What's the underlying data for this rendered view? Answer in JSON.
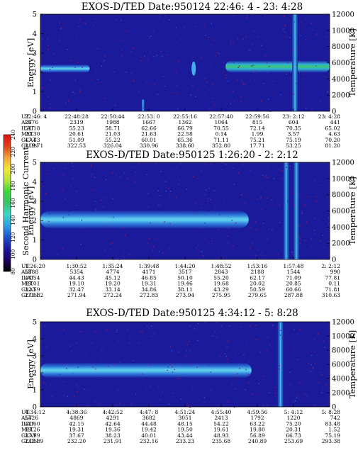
{
  "colors": {
    "background": "#1a1a9a",
    "colorbar_stops": [
      "#000000",
      "#200060",
      "#1a1aa0",
      "#1f4fd0",
      "#2aa0e6",
      "#3ad6c8",
      "#39c46a",
      "#38d838",
      "#b6e63a",
      "#f2e63a",
      "#f2a23a",
      "#e0401a",
      "#e01010"
    ]
  },
  "colorbar": {
    "label": "Second Harmonic Current",
    "ticks": [
      "80",
      "100",
      "120",
      "140",
      "160",
      "180",
      "200",
      "220",
      "240"
    ]
  },
  "ephemeris_labels": [
    "UT",
    "ALT",
    "ILAT",
    "MLT",
    "GLAT",
    "GLON"
  ],
  "chart_data": [
    {
      "type": "heatmap",
      "title": "EXOS-D/TED   Date:950124  22:46: 4 - 23: 4:28",
      "ylabel": "Energy [eV]",
      "ylabel_right": "Temperature [K]",
      "ylim": [
        0,
        5
      ],
      "yticks": [
        "0",
        "1",
        "2",
        "3",
        "4",
        "5"
      ],
      "ylim_right": [
        0,
        12000
      ],
      "yticks_right": [
        "0",
        "2000",
        "4000",
        "6000",
        "8000",
        "10000",
        "12000"
      ],
      "ephemeris": {
        "UT": [
          "22:46: 4",
          "22:48:28",
          "22:50:44",
          "22:53: 0",
          "22:55:16",
          "22:57:40",
          "22:59:56",
          "23: 2:12",
          "23: 4:28"
        ],
        "ALT": [
          "2676",
          "2319",
          "1988",
          "1667",
          "1362",
          "1064",
          "815",
          "604",
          "441"
        ],
        "ILAT": [
          "52.18",
          "55.23",
          "58.71",
          "62.66",
          "66.79",
          "70.55",
          "72.14",
          "70.35",
          "65.02"
        ],
        "MLT": [
          "20.30",
          "20.61",
          "21.03",
          "21.63",
          "22.58",
          "0.14",
          "1.99",
          "3.57",
          "4.63"
        ],
        "GLAT": [
          "47.43",
          "51.09",
          "55.22",
          "60.01",
          "65.36",
          "71.11",
          "75.21",
          "75.19",
          "70.20"
        ],
        "GLON": [
          "319.71",
          "322.53",
          "326.04",
          "330.96",
          "338.60",
          "352.80",
          "17.71",
          "53.25",
          "81.20"
        ]
      },
      "features": [
        {
          "name": "band",
          "x_start": 0.0,
          "x_end": 0.17,
          "energy_center": 2.2,
          "energy_width": 0.4,
          "level": 150
        },
        {
          "name": "spike",
          "x": 0.355,
          "energy_center": 0.2,
          "level": 130
        },
        {
          "name": "blob",
          "x": 0.53,
          "energy_center": 2.2,
          "level": 140
        },
        {
          "name": "patch",
          "x_start": 0.64,
          "x_end": 1.0,
          "energy_center": 2.3,
          "energy_width": 0.6,
          "level": 200
        },
        {
          "name": "vertical",
          "x": 0.88,
          "level": 170
        }
      ]
    },
    {
      "type": "heatmap",
      "title": "EXOS-D/TED   Date:950125   1:26:20 - 2: 2:12",
      "ylabel": "Energy [eV]",
      "ylabel_right": "Temperature [K]",
      "ylim": [
        0,
        5
      ],
      "yticks": [
        "0",
        "1",
        "2",
        "3",
        "4",
        "5"
      ],
      "ylim_right": [
        0,
        12000
      ],
      "yticks_right": [
        "0",
        "2000",
        "4000",
        "6000",
        "8000",
        "10000",
        "12000"
      ],
      "ephemeris": {
        "UT": [
          "1:26:20",
          "1:30:52",
          "1:35:24",
          "1:39:48",
          "1:44:20",
          "1:48:52",
          "1:53:16",
          "1:57:48",
          "2: 2:12"
        ],
        "ALT": [
          "5888",
          "5354",
          "4774",
          "4171",
          "3517",
          "2843",
          "2188",
          "1544",
          "990"
        ],
        "ILAT": [
          "44.54",
          "44.43",
          "45.12",
          "46.85",
          "50.10",
          "55.20",
          "62.17",
          "71.09",
          "77.81"
        ],
        "MLT": [
          "19.01",
          "19.10",
          "19.20",
          "19.31",
          "19.46",
          "19.68",
          "20.02",
          "20.85",
          "0.11"
        ],
        "GLAT": [
          "32.59",
          "32.47",
          "33.14",
          "34.86",
          "38.11",
          "43.29",
          "50.59",
          "60.66",
          "71.81"
        ],
        "GLON": [
          "271.82",
          "271.94",
          "272.24",
          "272.83",
          "273.94",
          "275.95",
          "279.65",
          "287.88",
          "310.63"
        ]
      },
      "features": [
        {
          "name": "band",
          "x_start": 0.0,
          "x_end": 0.72,
          "energy_center": 2.05,
          "energy_width": 0.9,
          "level": 150
        },
        {
          "name": "vertical",
          "x": 0.85,
          "level": 120
        },
        {
          "name": "vertical",
          "x": 0.885,
          "level": 120
        }
      ]
    },
    {
      "type": "heatmap",
      "title": "EXOS-D/TED   Date:950125   4:34:12 - 5: 8:28",
      "ylabel": "Energy [eV]",
      "ylabel_right": "Temperature [K]",
      "ylim": [
        0,
        5
      ],
      "yticks": [
        "0",
        "1",
        "2",
        "3",
        "4",
        "5"
      ],
      "ylim_right": [
        0,
        12000
      ],
      "yticks_right": [
        "0",
        "2000",
        "4000",
        "6000",
        "8000",
        "10000",
        "12000"
      ],
      "ephemeris": {
        "UT": [
          "4:34:12",
          "4:38:36",
          "4:42:52",
          "4:47: 8",
          "4:51:24",
          "4:55:40",
          "4:59:56",
          "5: 4:12",
          "5: 8:28"
        ],
        "ALT": [
          "5426",
          "4869",
          "4291",
          "3682",
          "3051",
          "2413",
          "1792",
          "1220",
          "742"
        ],
        "ILAT": [
          "42.60",
          "42.15",
          "42.64",
          "44.48",
          "48.15",
          "54.22",
          "63.22",
          "75.20",
          "83.48"
        ],
        "MLT": [
          "19.26",
          "19.31",
          "19.36",
          "19.42",
          "19.50",
          "19.61",
          "19.80",
          "20.31",
          "1.52"
        ],
        "GLAT": [
          "37.99",
          "37.67",
          "38.23",
          "40.01",
          "43.44",
          "48.93",
          "56.89",
          "66.73",
          "75.19"
        ],
        "GLON": [
          "232.89",
          "232.20",
          "231.91",
          "232.16",
          "233.23",
          "235.68",
          "240.89",
          "253.69",
          "293.38"
        ]
      },
      "features": [
        {
          "name": "band",
          "x_start": 0.0,
          "x_end": 0.73,
          "energy_center": 2.15,
          "energy_width": 0.85,
          "level": 150
        },
        {
          "name": "vertical",
          "x": 0.83,
          "level": 165
        }
      ]
    }
  ]
}
